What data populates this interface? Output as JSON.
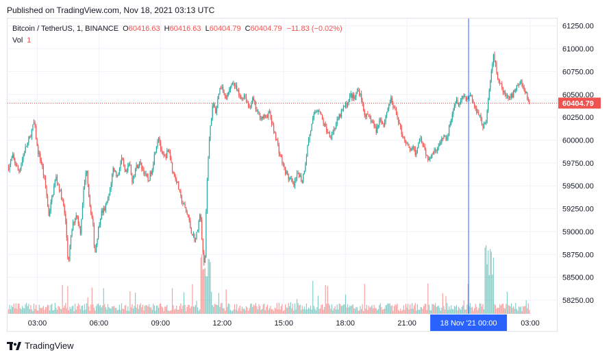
{
  "header": {
    "published": "Published on TradingView.com, Nov 18, 2021 03:13 UTC"
  },
  "legend": {
    "symbol": "Bitcoin / TetherUS, 1, BINANCE",
    "open_label": "O",
    "open": "60416.63",
    "high_label": "H",
    "high": "60416.63",
    "low_label": "L",
    "low": "60404.79",
    "close_label": "C",
    "close": "60404.79",
    "change": "−11.83 (−0.02%)",
    "vol_label": "Vol",
    "vol_value": "1"
  },
  "branding": {
    "name": "TradingView"
  },
  "colors": {
    "up": "#26a69a",
    "down": "#ef5350",
    "crosshair": "#2962ff",
    "grid": "#f0f3fa"
  },
  "chart_data": {
    "type": "candlestick",
    "y_ticks": [
      "61250.00",
      "61000.00",
      "60750.00",
      "60500.00",
      "60250.00",
      "60000.00",
      "59750.00",
      "59500.00",
      "59250.00",
      "59000.00",
      "58750.00",
      "58500.00",
      "58250.00"
    ],
    "y_tick_values": [
      61250,
      61000,
      60750,
      60500,
      60250,
      60000,
      59750,
      59500,
      59250,
      59000,
      58750,
      58500,
      58250
    ],
    "x_ticks": [
      "03:00",
      "06:00",
      "09:00",
      "12:00",
      "15:00",
      "18:00",
      "21:00",
      "03:00"
    ],
    "x_tick_hours": [
      3,
      6,
      9,
      12,
      15,
      18,
      21,
      27
    ],
    "x_range_hours": [
      1.55,
      28.3
    ],
    "y_range": [
      58100,
      61330
    ],
    "last_price": {
      "label": "60404.79",
      "value": 60404.79
    },
    "crosshair": {
      "label": "18 Nov '21   00:00",
      "hour": 24
    },
    "price_path": [
      [
        1.6,
        59700
      ],
      [
        1.8,
        59820
      ],
      [
        2.1,
        59650
      ],
      [
        2.4,
        59900
      ],
      [
        2.6,
        60000
      ],
      [
        2.85,
        60200
      ],
      [
        3.0,
        59900
      ],
      [
        3.2,
        59750
      ],
      [
        3.4,
        59500
      ],
      [
        3.55,
        59180
      ],
      [
        3.7,
        59350
      ],
      [
        3.9,
        59600
      ],
      [
        4.1,
        59450
      ],
      [
        4.3,
        59250
      ],
      [
        4.4,
        59050
      ],
      [
        4.5,
        58650
      ],
      [
        4.7,
        59050
      ],
      [
        4.9,
        59200
      ],
      [
        5.1,
        59000
      ],
      [
        5.25,
        59450
      ],
      [
        5.4,
        59700
      ],
      [
        5.55,
        59300
      ],
      [
        5.7,
        59100
      ],
      [
        5.8,
        58750
      ],
      [
        5.95,
        59000
      ],
      [
        6.1,
        59200
      ],
      [
        6.3,
        59250
      ],
      [
        6.5,
        59400
      ],
      [
        6.7,
        59700
      ],
      [
        6.9,
        59600
      ],
      [
        7.1,
        59800
      ],
      [
        7.3,
        59620
      ],
      [
        7.5,
        59750
      ],
      [
        7.6,
        59550
      ],
      [
        7.8,
        59700
      ],
      [
        8.0,
        59750
      ],
      [
        8.2,
        59650
      ],
      [
        8.4,
        59550
      ],
      [
        8.6,
        59700
      ],
      [
        8.75,
        59900
      ],
      [
        8.9,
        60050
      ],
      [
        9.05,
        59850
      ],
      [
        9.2,
        59800
      ],
      [
        9.4,
        59900
      ],
      [
        9.6,
        59650
      ],
      [
        9.8,
        59550
      ],
      [
        10.0,
        59350
      ],
      [
        10.2,
        59250
      ],
      [
        10.35,
        59150
      ],
      [
        10.5,
        59000
      ],
      [
        10.7,
        58900
      ],
      [
        10.85,
        59100
      ],
      [
        10.95,
        59200
      ],
      [
        11.05,
        58800
      ],
      [
        11.15,
        58550
      ],
      [
        11.25,
        59500
      ],
      [
        11.4,
        60100
      ],
      [
        11.55,
        60400
      ],
      [
        11.7,
        60300
      ],
      [
        11.85,
        60550
      ],
      [
        12.0,
        60600
      ],
      [
        12.15,
        60450
      ],
      [
        12.3,
        60500
      ],
      [
        12.5,
        60650
      ],
      [
        12.7,
        60550
      ],
      [
        12.9,
        60450
      ],
      [
        13.1,
        60500
      ],
      [
        13.3,
        60350
      ],
      [
        13.5,
        60450
      ],
      [
        13.7,
        60300
      ],
      [
        13.9,
        60250
      ],
      [
        14.1,
        60250
      ],
      [
        14.3,
        60300
      ],
      [
        14.45,
        60150
      ],
      [
        14.6,
        60050
      ],
      [
        14.8,
        59850
      ],
      [
        15.0,
        59700
      ],
      [
        15.2,
        59600
      ],
      [
        15.35,
        59550
      ],
      [
        15.5,
        59500
      ],
      [
        15.7,
        59650
      ],
      [
        15.9,
        59550
      ],
      [
        16.05,
        59750
      ],
      [
        16.2,
        60000
      ],
      [
        16.35,
        60150
      ],
      [
        16.5,
        60300
      ],
      [
        16.7,
        60350
      ],
      [
        16.9,
        60200
      ],
      [
        17.1,
        60100
      ],
      [
        17.3,
        60050
      ],
      [
        17.5,
        60150
      ],
      [
        17.7,
        60250
      ],
      [
        17.9,
        60350
      ],
      [
        18.1,
        60400
      ],
      [
        18.25,
        60500
      ],
      [
        18.45,
        60450
      ],
      [
        18.6,
        60550
      ],
      [
        18.75,
        60500
      ],
      [
        18.9,
        60300
      ],
      [
        19.1,
        60250
      ],
      [
        19.3,
        60200
      ],
      [
        19.5,
        60100
      ],
      [
        19.7,
        60250
      ],
      [
        19.85,
        60150
      ],
      [
        20.0,
        60300
      ],
      [
        20.2,
        60450
      ],
      [
        20.35,
        60350
      ],
      [
        20.55,
        60250
      ],
      [
        20.7,
        60100
      ],
      [
        20.9,
        60000
      ],
      [
        21.1,
        59900
      ],
      [
        21.3,
        59900
      ],
      [
        21.45,
        59850
      ],
      [
        21.6,
        60050
      ],
      [
        21.8,
        59950
      ],
      [
        22.0,
        59800
      ],
      [
        22.2,
        59850
      ],
      [
        22.4,
        59900
      ],
      [
        22.6,
        59950
      ],
      [
        22.8,
        60050
      ],
      [
        22.95,
        60000
      ],
      [
        23.1,
        60200
      ],
      [
        23.25,
        60350
      ],
      [
        23.4,
        60450
      ],
      [
        23.55,
        60400
      ],
      [
        23.75,
        60500
      ],
      [
        23.9,
        60450
      ],
      [
        24.1,
        60500
      ],
      [
        24.3,
        60350
      ],
      [
        24.5,
        60300
      ],
      [
        24.7,
        60150
      ],
      [
        24.85,
        60200
      ],
      [
        25.0,
        60500
      ],
      [
        25.2,
        60950
      ],
      [
        25.4,
        60700
      ],
      [
        25.55,
        60600
      ],
      [
        25.75,
        60500
      ],
      [
        25.95,
        60450
      ],
      [
        26.15,
        60500
      ],
      [
        26.35,
        60600
      ],
      [
        26.55,
        60650
      ],
      [
        26.7,
        60550
      ],
      [
        26.9,
        60450
      ],
      [
        27.0,
        60404
      ]
    ],
    "volume_scale": {
      "min_ratio": 0.3
    }
  }
}
